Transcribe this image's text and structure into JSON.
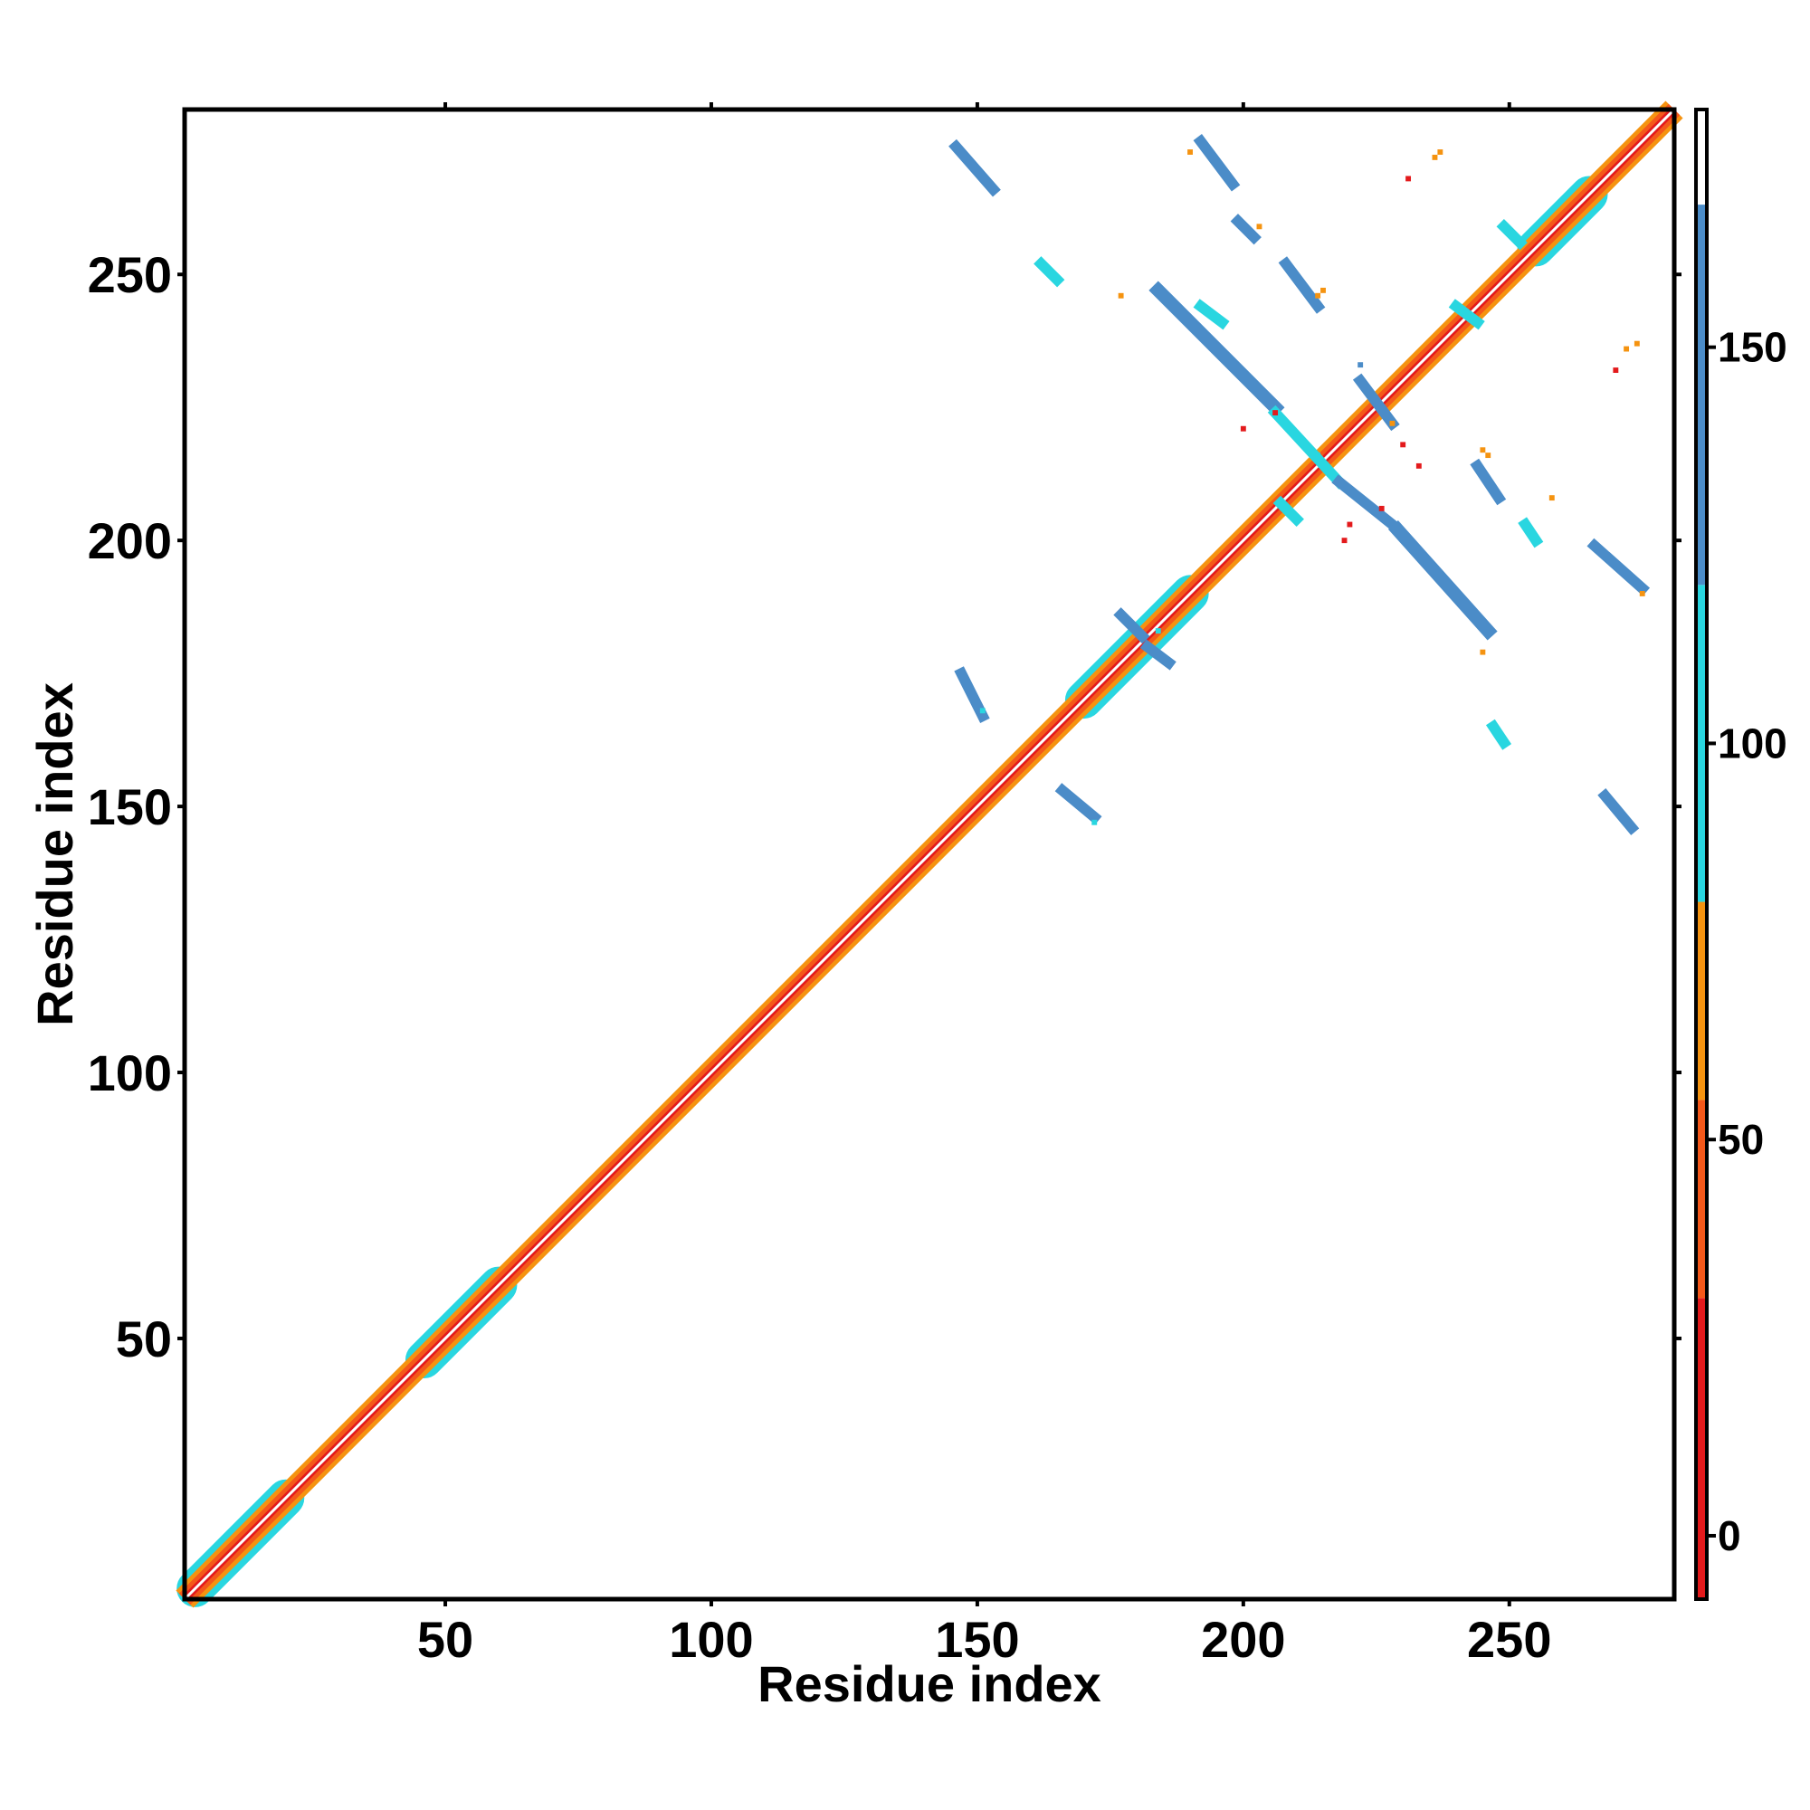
{
  "chart_data": {
    "type": "heatmap",
    "title": "",
    "xlabel": "Residue index",
    "ylabel": "Residue index",
    "xlim": [
      1,
      281
    ],
    "ylim": [
      1,
      281
    ],
    "x_ticks": [
      50,
      100,
      150,
      200,
      250
    ],
    "y_ticks": [
      50,
      100,
      150,
      200,
      250
    ],
    "grid": false,
    "colorbar": {
      "range": [
        -8,
        180
      ],
      "ticks": [
        0,
        50,
        100,
        150
      ],
      "bands": [
        {
          "from": -8,
          "to": 30,
          "color": "#e31a1c"
        },
        {
          "from": 30,
          "to": 55,
          "color": "#f4581a"
        },
        {
          "from": 55,
          "to": 80,
          "color": "#f59310"
        },
        {
          "from": 80,
          "to": 120,
          "color": "#29d6e0"
        },
        {
          "from": 120,
          "to": 168,
          "color": "#4b8cc8"
        },
        {
          "from": 168,
          "to": 180,
          "color": "#ffffff"
        }
      ]
    },
    "diagonal": {
      "from": 1,
      "to": 281,
      "core_value": 5,
      "inner_value": 40,
      "outer_value": 70,
      "wide_segments": [
        {
          "from": 3,
          "to": 20,
          "value": 95
        },
        {
          "from": 46,
          "to": 60,
          "value": 95
        },
        {
          "from": 170,
          "to": 190,
          "value": 100
        },
        {
          "from": 255,
          "to": 265,
          "value": 100
        }
      ]
    },
    "segments": [
      {
        "x1": 146,
        "y1": 274,
        "x2": 153,
        "y2": 266,
        "value": 150,
        "width": 2
      },
      {
        "x1": 192,
        "y1": 275,
        "x2": 198,
        "y2": 267,
        "value": 150,
        "width": 2
      },
      {
        "x1": 199,
        "y1": 260,
        "x2": 202,
        "y2": 257,
        "value": 140,
        "width": 2
      },
      {
        "x1": 208,
        "y1": 252,
        "x2": 214,
        "y2": 244,
        "value": 150,
        "width": 2
      },
      {
        "x1": 162,
        "y1": 252,
        "x2": 165,
        "y2": 249,
        "value": 105,
        "width": 2
      },
      {
        "x1": 184,
        "y1": 247,
        "x2": 206,
        "y2": 225,
        "value": 150,
        "width": 2.5
      },
      {
        "x1": 206,
        "y1": 224,
        "x2": 218,
        "y2": 211,
        "value": 100,
        "width": 2
      },
      {
        "x1": 218,
        "y1": 211,
        "x2": 228,
        "y2": 203,
        "value": 150,
        "width": 2
      },
      {
        "x1": 229,
        "y1": 202,
        "x2": 246,
        "y2": 183,
        "value": 150,
        "width": 2.5
      },
      {
        "x1": 222,
        "y1": 230,
        "x2": 228,
        "y2": 222,
        "value": 150,
        "width": 2
      },
      {
        "x1": 244,
        "y1": 214,
        "x2": 248,
        "y2": 208,
        "value": 150,
        "width": 2
      },
      {
        "x1": 253,
        "y1": 203,
        "x2": 255,
        "y2": 200,
        "value": 105,
        "width": 2
      },
      {
        "x1": 266,
        "y1": 199,
        "x2": 275,
        "y2": 191,
        "value": 150,
        "width": 2
      },
      {
        "x1": 177,
        "y1": 186,
        "x2": 181,
        "y2": 182,
        "value": 150,
        "width": 2
      },
      {
        "x1": 182,
        "y1": 180,
        "x2": 186,
        "y2": 177,
        "value": 150,
        "width": 2
      },
      {
        "x1": 147,
        "y1": 175,
        "x2": 151,
        "y2": 167,
        "value": 150,
        "width": 2
      },
      {
        "x1": 247,
        "y1": 165,
        "x2": 249,
        "y2": 162,
        "value": 105,
        "width": 2
      },
      {
        "x1": 166,
        "y1": 153,
        "x2": 172,
        "y2": 148,
        "value": 150,
        "width": 2
      },
      {
        "x1": 268,
        "y1": 152,
        "x2": 273,
        "y2": 146,
        "value": 150,
        "width": 2
      },
      {
        "x1": 240,
        "y1": 244,
        "x2": 244,
        "y2": 241,
        "value": 105,
        "width": 2
      },
      {
        "x1": 192,
        "y1": 244,
        "x2": 196,
        "y2": 241,
        "value": 105,
        "width": 2
      },
      {
        "x1": 207,
        "y1": 207,
        "x2": 210,
        "y2": 204,
        "value": 105,
        "width": 2
      },
      {
        "x1": 249,
        "y1": 259,
        "x2": 252,
        "y2": 256,
        "value": 105,
        "width": 2
      }
    ],
    "points": [
      {
        "x": 237,
        "y": 273,
        "value": 60
      },
      {
        "x": 236,
        "y": 272,
        "value": 60
      },
      {
        "x": 231,
        "y": 268,
        "value": 15
      },
      {
        "x": 190,
        "y": 273,
        "value": 60
      },
      {
        "x": 203,
        "y": 259,
        "value": 70
      },
      {
        "x": 215,
        "y": 247,
        "value": 70
      },
      {
        "x": 214,
        "y": 246,
        "value": 60
      },
      {
        "x": 177,
        "y": 246,
        "value": 70
      },
      {
        "x": 222,
        "y": 233,
        "value": 150
      },
      {
        "x": 228,
        "y": 222,
        "value": 60
      },
      {
        "x": 274,
        "y": 237,
        "value": 60
      },
      {
        "x": 272,
        "y": 236,
        "value": 60
      },
      {
        "x": 270,
        "y": 232,
        "value": 15
      },
      {
        "x": 206,
        "y": 224,
        "value": 15
      },
      {
        "x": 200,
        "y": 221,
        "value": 15
      },
      {
        "x": 230,
        "y": 218,
        "value": 15
      },
      {
        "x": 233,
        "y": 214,
        "value": 15
      },
      {
        "x": 246,
        "y": 216,
        "value": 70
      },
      {
        "x": 245,
        "y": 217,
        "value": 70
      },
      {
        "x": 258,
        "y": 208,
        "value": 70
      },
      {
        "x": 226,
        "y": 206,
        "value": 15
      },
      {
        "x": 220,
        "y": 203,
        "value": 15
      },
      {
        "x": 219,
        "y": 200,
        "value": 15
      },
      {
        "x": 214,
        "y": 216,
        "value": 100
      },
      {
        "x": 275,
        "y": 190,
        "value": 70
      },
      {
        "x": 245,
        "y": 179,
        "value": 70
      },
      {
        "x": 184,
        "y": 183,
        "value": 100
      },
      {
        "x": 172,
        "y": 147,
        "value": 100
      },
      {
        "x": 151,
        "y": 168,
        "value": 100
      }
    ]
  }
}
